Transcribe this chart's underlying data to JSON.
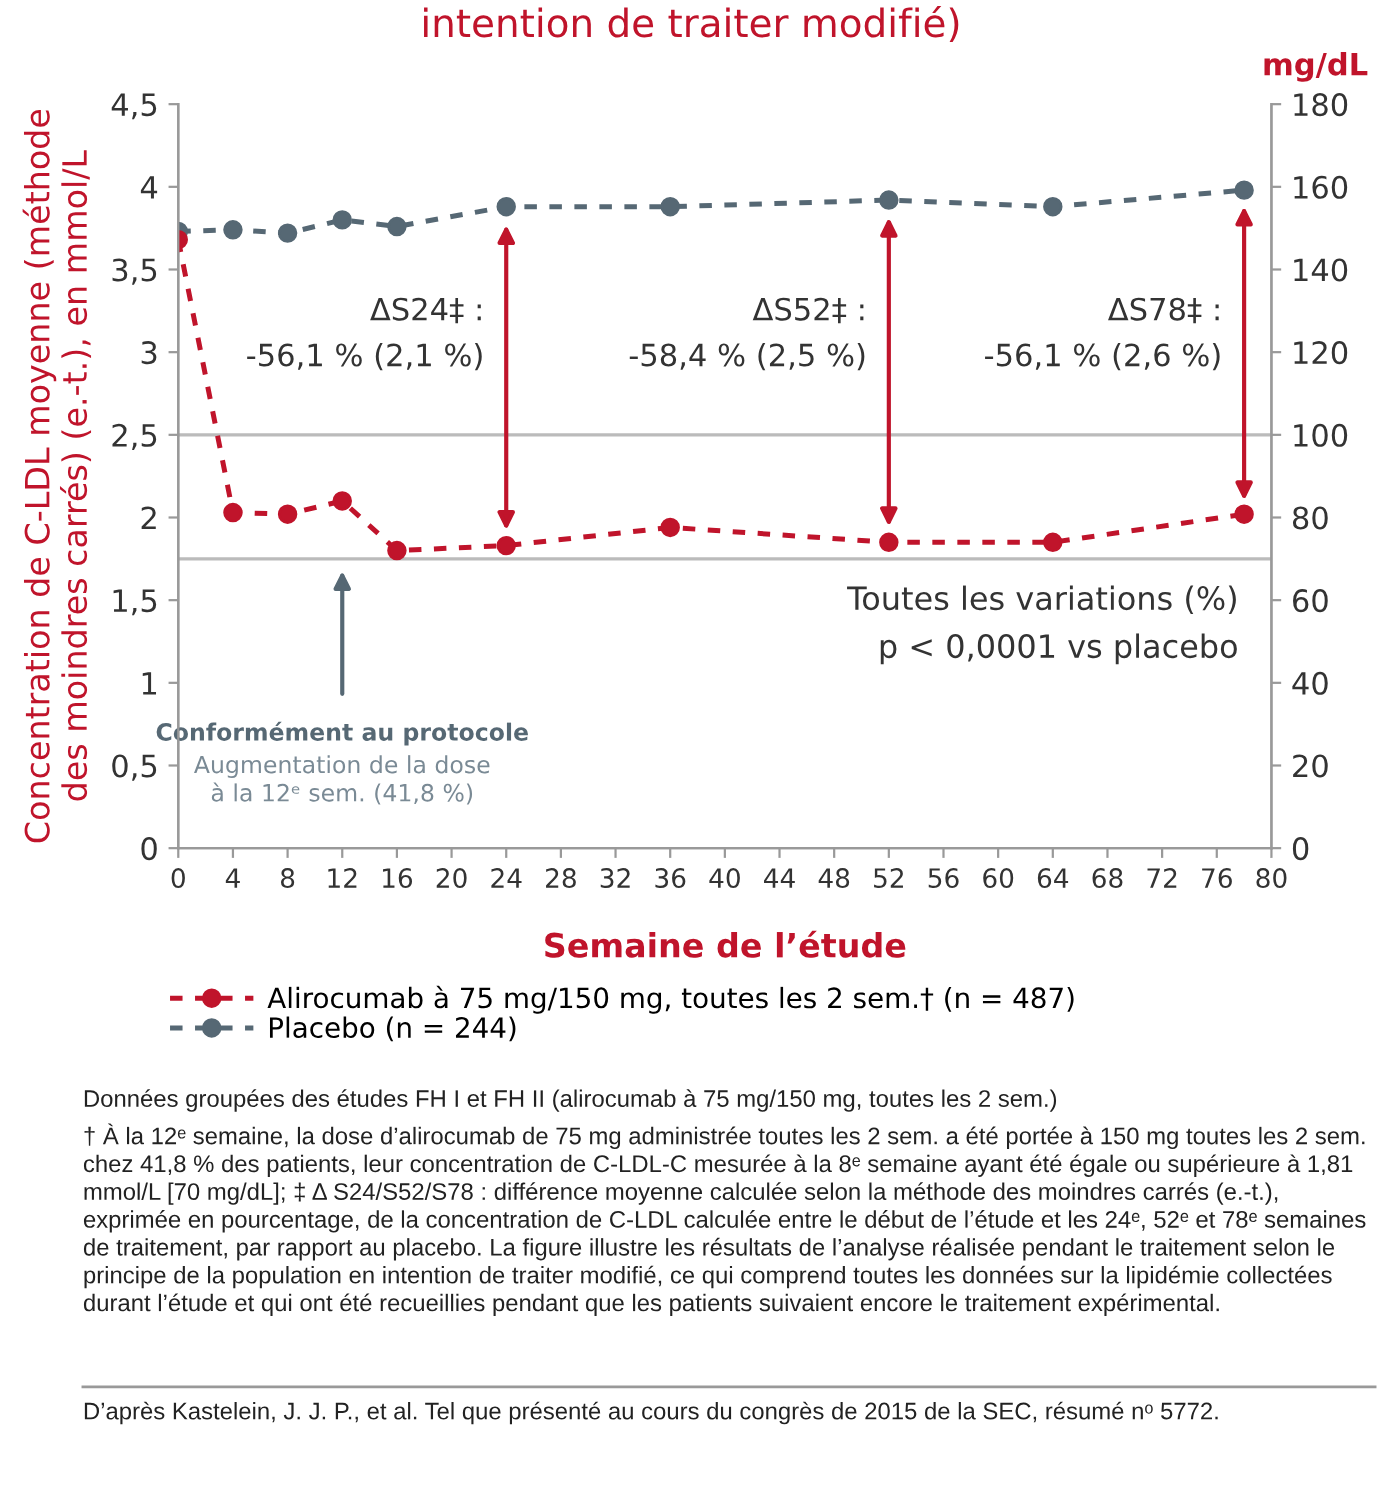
{
  "chart_data": {
    "type": "line",
    "title": "intention de traiter modifié)",
    "xlabel": "Semaine de l’étude",
    "ylabel": "Concentration de C-LDL moyenne (méthode\ndes moindres carrés) (e.-t.), en mmol/L",
    "y2label": "mg/dL",
    "xlim": [
      0,
      80
    ],
    "xticks": [
      0,
      4,
      8,
      12,
      16,
      20,
      24,
      28,
      32,
      36,
      40,
      44,
      48,
      52,
      56,
      60,
      64,
      68,
      72,
      76,
      80
    ],
    "ylim": [
      0,
      4.5
    ],
    "yticks": [
      0,
      {
        "value": 0.5,
        "label": "0,5"
      },
      1,
      {
        "value": 1.5,
        "label": "1,5"
      },
      2,
      {
        "value": 2.5,
        "label": "2,5"
      },
      3,
      {
        "value": 3.5,
        "label": "3,5"
      },
      4,
      {
        "value": 4.5,
        "label": "4,5"
      }
    ],
    "y2lim": [
      0,
      180
    ],
    "y2ticks": [
      0,
      20,
      40,
      60,
      80,
      100,
      120,
      140,
      160,
      180
    ],
    "x": [
      0,
      4,
      8,
      12,
      16,
      24,
      36,
      52,
      64,
      78
    ],
    "series": [
      {
        "name": "Alirocumab à 75 mg/150 mg, toutes les 2 sem.† (n = 487)",
        "color": "#c0142b",
        "values": [
          3.68,
          2.03,
          2.02,
          2.1,
          1.8,
          1.83,
          1.94,
          1.85,
          1.85,
          2.02
        ]
      },
      {
        "name": "Placebo (n = 244)",
        "color": "#566874",
        "values": [
          3.73,
          3.74,
          3.72,
          3.8,
          3.76,
          3.88,
          3.88,
          3.92,
          3.88,
          3.98
        ]
      }
    ],
    "marker": "circle",
    "line_style": "dashed",
    "legend": "bottom",
    "grid": false,
    "ref_lines": [
      {
        "axis": "y",
        "value": 2.5,
        "color": "#bbbbbb"
      },
      {
        "axis": "y",
        "value": 1.75,
        "color": "#bbbbbb"
      }
    ],
    "annotations": [
      "ΔS24‡ :\n-56,1 % (2,1 %)",
      "ΔS52‡ :\n-58,4 % (2,5 %)",
      "ΔS78‡ :\n-56,1 % (2,6 %)",
      "Conformément au protocole",
      "Augmentation de la dose\nà la 12ᵉ sem. (41,8 %)",
      "Toutes les variations (%)\np < 0,0001 vs placebo",
      "Données groupées des études FH I et FH II (alirocumab à 75 mg/150 mg, toutes les 2 sem.)",
      "† À la 12ᵉ semaine, la dose d’alirocumab de 75 mg administrée toutes les 2 sem. a été portée à 150 mg toutes les 2 sem. chez 41,8 % des patients, leur concentration de C-LDL-C mesurée à la 8ᵉ semaine ayant été égale ou supérieure à 1,81 mmol/L [70 mg/dL]; ‡ Δ S24/S52/S78 : différence moyenne calculée selon la méthode des moindres carrés (e.-t.), exprimée en pourcentage, de la concentration de C-LDL calculée entre le début de l’étude et les 24ᵉ, 52ᵉ et 78ᵉ semaines de traitement, par rapport au placebo. La figure illustre les résultats de l’analyse réalisée pendant le traitement selon le principe de la population en intention de traiter modifié, ce qui comprend toutes les données sur la lipidémie collectées durant l’étude et qui ont été recueillies pendant que les patients suivaient encore le traitement expérimental.",
      "D’après Kastelein, J. J. P., et al. Tel que présenté au cours du congrès de 2015 de la SEC, résumé nᵒ 5772."
    ]
  }
}
